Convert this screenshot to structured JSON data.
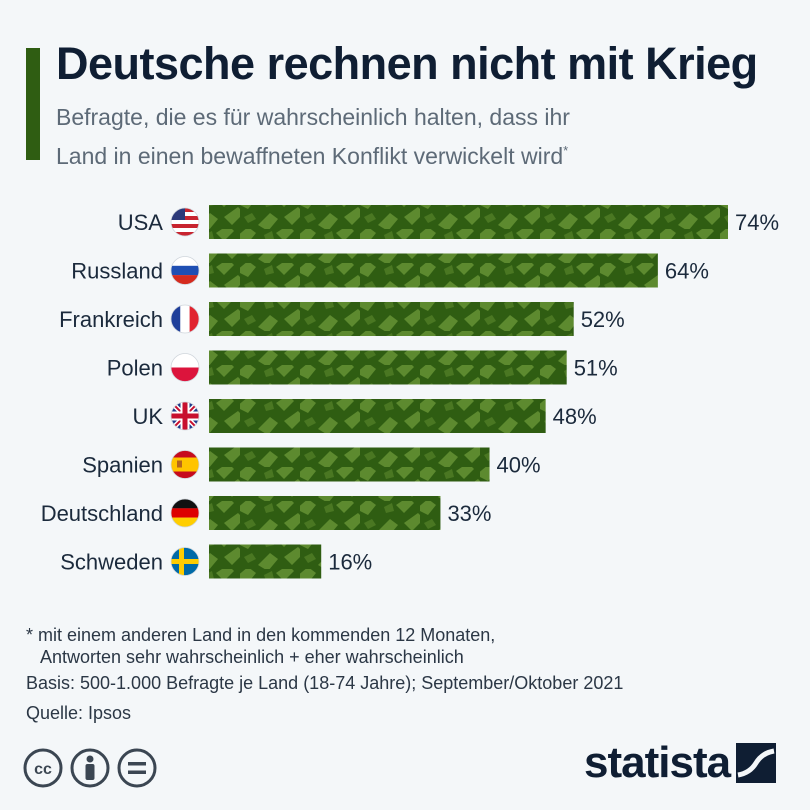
{
  "header": {
    "title": "Deutsche rechnen nicht mit Krieg",
    "subtitle_line1": "Befragte, die es für wahrscheinlich halten, dass ihr",
    "subtitle_line2": "Land in einen bewaffneten Konflikt verwickelt wird",
    "subtitle_mark": "*"
  },
  "colors": {
    "accent": "#2f5d12",
    "bar_dark": "#2f5d12",
    "bar_light": "#5d8a2f",
    "title": "#0f1e33"
  },
  "chart_data": {
    "type": "bar",
    "orientation": "horizontal",
    "categories": [
      "USA",
      "Russland",
      "Frankreich",
      "Polen",
      "UK",
      "Spanien",
      "Deutschland",
      "Schweden"
    ],
    "values": [
      74,
      64,
      52,
      51,
      48,
      40,
      33,
      16
    ],
    "value_labels": [
      "74%",
      "64%",
      "52%",
      "51%",
      "48%",
      "40%",
      "33%",
      "16%"
    ],
    "flags": [
      "flag-usa-icon",
      "flag-russia-icon",
      "flag-france-icon",
      "flag-poland-icon",
      "flag-uk-icon",
      "flag-spain-icon",
      "flag-germany-icon",
      "flag-sweden-icon"
    ],
    "unit": "%",
    "xlim": [
      0,
      74
    ],
    "grid": false,
    "legend": "none",
    "bar_fill": "camouflage"
  },
  "footer": {
    "note_line1": "* mit einem anderen Land in den kommenden 12 Monaten,",
    "note_line2": "Antworten sehr wahrscheinlich + eher wahrscheinlich",
    "basis": "Basis: 500-1.000 Befragte je Land (18-74 Jahre); September/Oktober 2021",
    "source": "Quelle: Ipsos",
    "brand": "statista",
    "license_icons": [
      "cc-icon",
      "by-icon",
      "nd-icon"
    ]
  }
}
